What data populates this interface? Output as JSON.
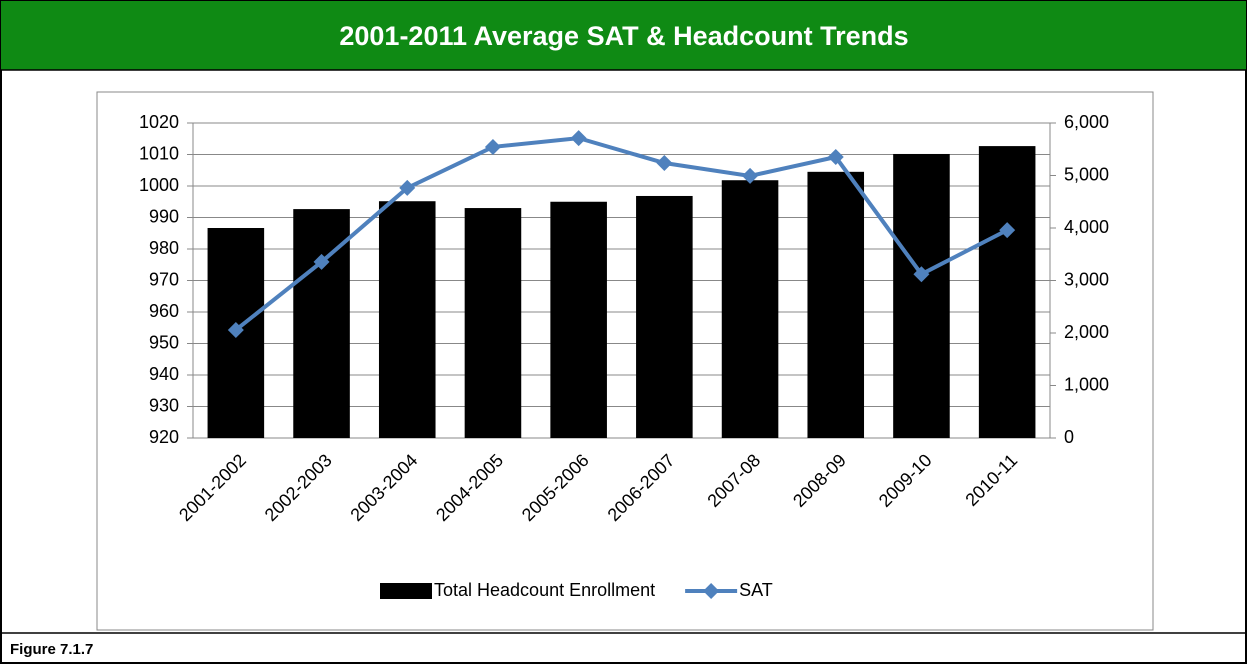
{
  "chart_data": {
    "type": "bar_line",
    "title": "2001-2011 Average SAT & Headcount Trends",
    "caption": "Figure 7.1.7",
    "categories": [
      "2001-2002",
      "2002-2003",
      "2003-2004",
      "2004-2005",
      "2005-2006",
      "2006-2007",
      "2007-08",
      "2008-09",
      "2009-10",
      "2010-11"
    ],
    "series": [
      {
        "name": "Total Headcount Enrollment",
        "type": "bar",
        "axis": "y2",
        "color": "#000000",
        "values": [
          4000,
          4360,
          4510,
          4380,
          4500,
          4610,
          4910,
          5070,
          5410,
          5560
        ]
      },
      {
        "name": "SAT",
        "type": "line",
        "axis": "y",
        "color": "#4f81bd",
        "values": [
          954.3,
          975.9,
          999.4,
          1012.4,
          1015.2,
          1007.3,
          1003.2,
          1009.2,
          972,
          986
        ]
      }
    ],
    "ylim": [
      920,
      1020
    ],
    "yticks": [
      920,
      930,
      940,
      950,
      960,
      970,
      980,
      990,
      1000,
      1010,
      1020
    ],
    "y2lim": [
      0,
      6000
    ],
    "y2ticks": [
      0,
      {
        "value": 1000,
        "label": "1,000"
      },
      {
        "value": 2000,
        "label": "2,000"
      },
      {
        "value": 3000,
        "label": "3,000"
      },
      {
        "value": 4000,
        "label": "4,000"
      },
      {
        "value": 5000,
        "label": "5,000"
      },
      {
        "value": 6000,
        "label": "6,000"
      }
    ],
    "grid": true,
    "legend": "bottom"
  }
}
